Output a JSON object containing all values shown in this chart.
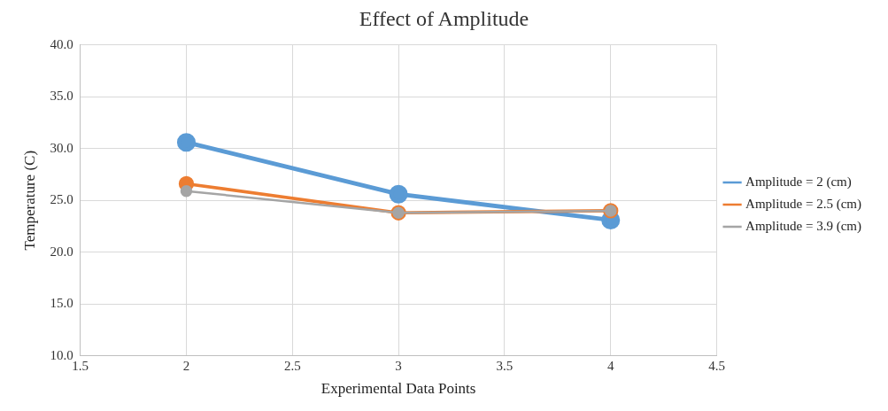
{
  "chart_data": {
    "type": "line",
    "title": "Effect of Amplitude",
    "xlabel": "Experimental Data Points",
    "ylabel": "Temperature (C)",
    "x": [
      2,
      3,
      4
    ],
    "series": [
      {
        "name": "Amplitude = 2 (cm)",
        "color": "#5b9bd5",
        "values": [
          30.6,
          25.6,
          23.1
        ]
      },
      {
        "name": "Amplitude = 2.5 (cm)",
        "color": "#ed7d31",
        "values": [
          26.6,
          23.8,
          24.0
        ]
      },
      {
        "name": "Amplitude = 3.9 (cm)",
        "color": "#a5a5a5",
        "values": [
          25.9,
          23.8,
          24.0
        ]
      }
    ],
    "xlim": [
      1.5,
      4.5
    ],
    "xticks": [
      {
        "value": 1.5,
        "label": "1.5"
      },
      {
        "value": 2,
        "label": "2"
      },
      {
        "value": 2.5,
        "label": "2.5"
      },
      {
        "value": 3,
        "label": "3"
      },
      {
        "value": 3.5,
        "label": "3.5"
      },
      {
        "value": 4,
        "label": "4"
      },
      {
        "value": 4.5,
        "label": "4.5"
      }
    ],
    "ylim": [
      10,
      40
    ],
    "yticks": [
      {
        "value": 10,
        "label": "10.0"
      },
      {
        "value": 15,
        "label": "15.0"
      },
      {
        "value": 20,
        "label": "20.0"
      },
      {
        "value": 25,
        "label": "25.0"
      },
      {
        "value": 30,
        "label": "30.0"
      },
      {
        "value": 35,
        "label": "35.0"
      },
      {
        "value": 40,
        "label": "40.0"
      }
    ],
    "grid": true,
    "legend": "right",
    "marker": "circle",
    "line_style": "solid"
  }
}
